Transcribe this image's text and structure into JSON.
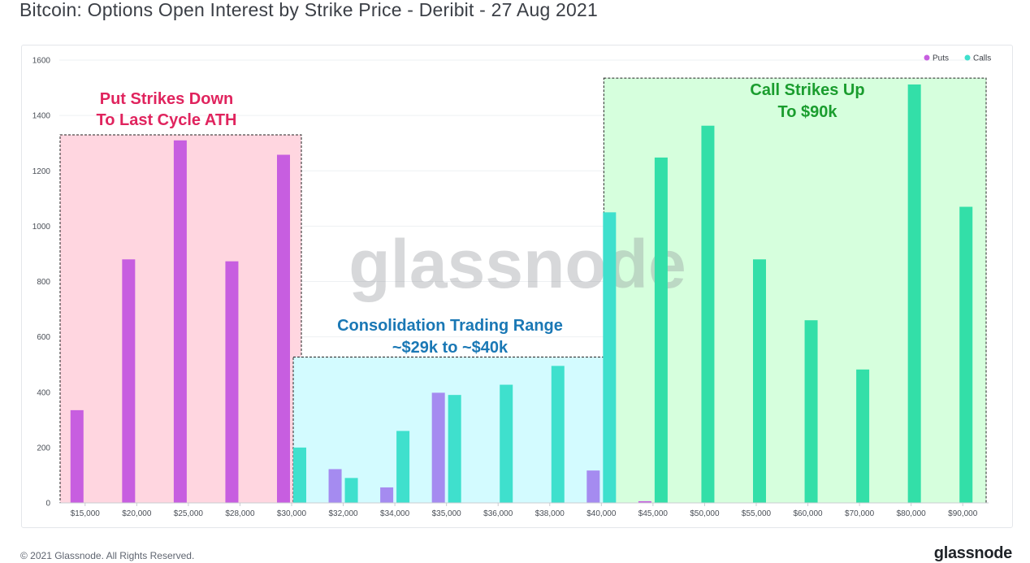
{
  "header": {
    "title": "Bitcoin: Options Open Interest by Strike Price - Deribit - 27 Aug 2021"
  },
  "footer": {
    "copyright": "© 2021 Glassnode. All Rights Reserved.",
    "logo": "glassnode"
  },
  "watermark": "glassnode",
  "chart_data": {
    "type": "bar",
    "title": "Bitcoin: Options Open Interest by Strike Price - Deribit - 27 Aug 2021",
    "xlabel": "",
    "ylabel": "",
    "ylim": [
      0,
      1600
    ],
    "yticks": [
      0,
      200,
      400,
      600,
      800,
      1000,
      1200,
      1400,
      1600
    ],
    "grid": true,
    "legend_placement": "top-right",
    "categories": [
      "$15,000",
      "$20,000",
      "$25,000",
      "$28,000",
      "$30,000",
      "$32,000",
      "$34,000",
      "$35,000",
      "$36,000",
      "$38,000",
      "$40,000",
      "$45,000",
      "$50,000",
      "$55,000",
      "$60,000",
      "$70,000",
      "$80,000",
      "$90,000"
    ],
    "series": [
      {
        "name": "Puts",
        "color": "#c75ee0",
        "values": [
          335,
          880,
          1310,
          873,
          1258,
          122,
          56,
          398,
          0,
          0,
          117,
          6,
          0,
          0,
          0,
          0,
          0,
          0
        ]
      },
      {
        "name": "Calls",
        "color": "#3fe0cd",
        "values": [
          0,
          0,
          0,
          0,
          200,
          90,
          260,
          390,
          427,
          495,
          1050,
          1248,
          1363,
          880,
          660,
          482,
          1512,
          1070
        ]
      }
    ],
    "annotations": [
      {
        "text": [
          "Put Strikes Down",
          "To Last Cycle ATH"
        ],
        "color": "#e0245e",
        "fill": "#ffd6e0",
        "from_index": 0,
        "to_index": 4,
        "top_value": 1330
      },
      {
        "text": [
          "Consolidation Trading Range",
          "~$29k to ~$40k"
        ],
        "color": "#1a78b5",
        "fill": "#d3fbff",
        "from_index": 4,
        "to_index": 10,
        "top_value": 527
      },
      {
        "text": [
          "Call Strikes Up",
          "To $90k"
        ],
        "color": "#1a9d2e",
        "fill": "#d6ffdd",
        "from_index": 10,
        "to_index": 17,
        "top_value": 1535
      }
    ]
  }
}
